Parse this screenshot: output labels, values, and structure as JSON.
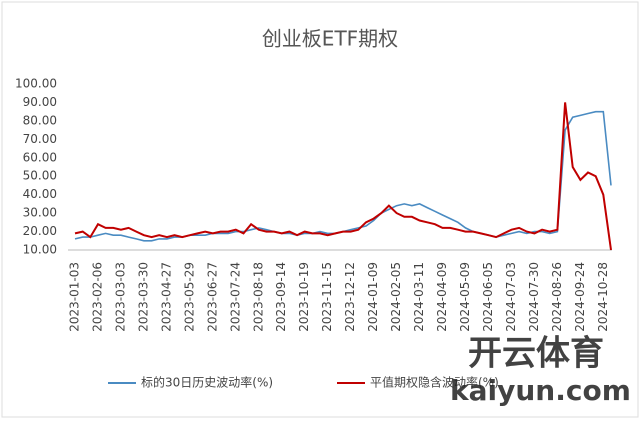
{
  "chart_data": {
    "type": "line",
    "title": "创业板ETF期权",
    "categories": [
      "2023-01-03",
      null,
      null,
      "2023-02-06",
      null,
      null,
      "2023-03-03",
      null,
      null,
      "2023-03-30",
      null,
      null,
      "2023-04-27",
      null,
      null,
      "2023-05-29",
      null,
      null,
      "2023-06-27",
      null,
      null,
      "2023-07-24",
      null,
      null,
      "2023-08-18",
      null,
      null,
      "2023-09-14",
      null,
      null,
      "2023-10-19",
      null,
      null,
      "2023-11-15",
      null,
      null,
      "2023-12-12",
      null,
      null,
      "2024-01-09",
      null,
      null,
      "2024-02-05",
      null,
      null,
      "2024-03-11",
      null,
      null,
      "2024-04-09",
      null,
      null,
      "2024-05-09",
      null,
      null,
      "2024-06-05",
      null,
      null,
      "2024-07-03",
      null,
      null,
      "2024-07-30",
      null,
      null,
      "2024-08-26",
      null,
      null,
      "2024-09-24",
      null,
      null,
      "2024-10-28",
      null
    ],
    "series": [
      {
        "name": "标的30日历史波动率(%)",
        "color": "#4a8bc2",
        "values": [
          16,
          17,
          17,
          18,
          19,
          18,
          18,
          17,
          16,
          15,
          15,
          16,
          16,
          17,
          17,
          18,
          18,
          18,
          19,
          19,
          19,
          20,
          20,
          21,
          22,
          21,
          20,
          19,
          19,
          18,
          19,
          19,
          20,
          19,
          19,
          20,
          21,
          22,
          23,
          26,
          30,
          32,
          34,
          35,
          34,
          35,
          33,
          31,
          29,
          27,
          25,
          22,
          20,
          19,
          18,
          17,
          18,
          19,
          20,
          19,
          20,
          20,
          19,
          20,
          75,
          82,
          83,
          84,
          85,
          85,
          45
        ]
      },
      {
        "name": "平值期权隐含波动率(%)",
        "color": "#c00000",
        "values": [
          19,
          20,
          17,
          24,
          22,
          22,
          21,
          22,
          20,
          18,
          17,
          18,
          17,
          18,
          17,
          18,
          19,
          20,
          19,
          20,
          20,
          21,
          19,
          24,
          21,
          20,
          20,
          19,
          20,
          18,
          20,
          19,
          19,
          18,
          19,
          20,
          20,
          21,
          25,
          27,
          30,
          34,
          30,
          28,
          28,
          26,
          25,
          24,
          22,
          22,
          21,
          20,
          20,
          19,
          18,
          17,
          19,
          21,
          22,
          20,
          19,
          21,
          20,
          21,
          90,
          55,
          48,
          52,
          50,
          40,
          10
        ]
      }
    ],
    "ylim": [
      10,
      100
    ],
    "yticks": [
      {
        "value": 10,
        "label": "10.00"
      },
      {
        "value": 20,
        "label": "20.00"
      },
      {
        "value": 30,
        "label": "30.00"
      },
      {
        "value": 40,
        "label": "40.00"
      },
      {
        "value": 50,
        "label": "50.00"
      },
      {
        "value": 60,
        "label": "60.00"
      },
      {
        "value": 70,
        "label": "70.00"
      },
      {
        "value": 80,
        "label": "80.00"
      },
      {
        "value": 90,
        "label": "90.00"
      },
      {
        "value": 100,
        "label": "100.00"
      }
    ],
    "watermark": {
      "brand": "开云体育",
      "site": "kaiyun.com"
    }
  }
}
